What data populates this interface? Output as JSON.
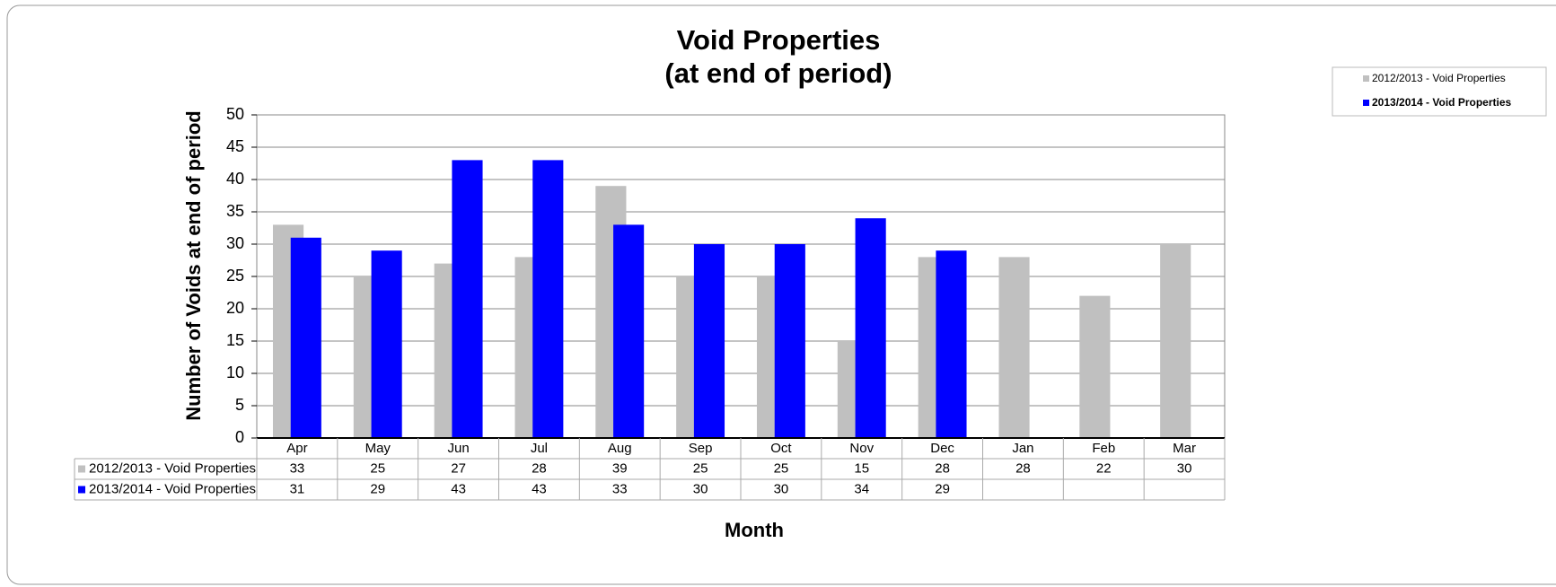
{
  "chart_data": {
    "type": "bar",
    "title": "Void Properties",
    "subtitle": "(at end of period)",
    "x_label": "Month",
    "y_label": "Number of Voids at end of period",
    "categories": [
      "Apr",
      "May",
      "Jun",
      "Jul",
      "Aug",
      "Sep",
      "Oct",
      "Nov",
      "Dec",
      "Jan",
      "Feb",
      "Mar"
    ],
    "series": [
      {
        "name": "2012/2013 - Void Properties",
        "color": "#c0c0c0",
        "values": [
          33,
          25,
          27,
          28,
          39,
          25,
          25,
          15,
          28,
          28,
          22,
          30
        ]
      },
      {
        "name": "2013/2014 - Void Properties",
        "color": "#0000ff",
        "values": [
          31,
          29,
          43,
          43,
          33,
          30,
          30,
          34,
          29,
          null,
          null,
          null
        ]
      }
    ],
    "ylim": [
      0,
      50
    ],
    "yticks": [
      0,
      5,
      10,
      15,
      20,
      25,
      30,
      35,
      40,
      45,
      50
    ],
    "grid": true,
    "legend": "upper right"
  }
}
